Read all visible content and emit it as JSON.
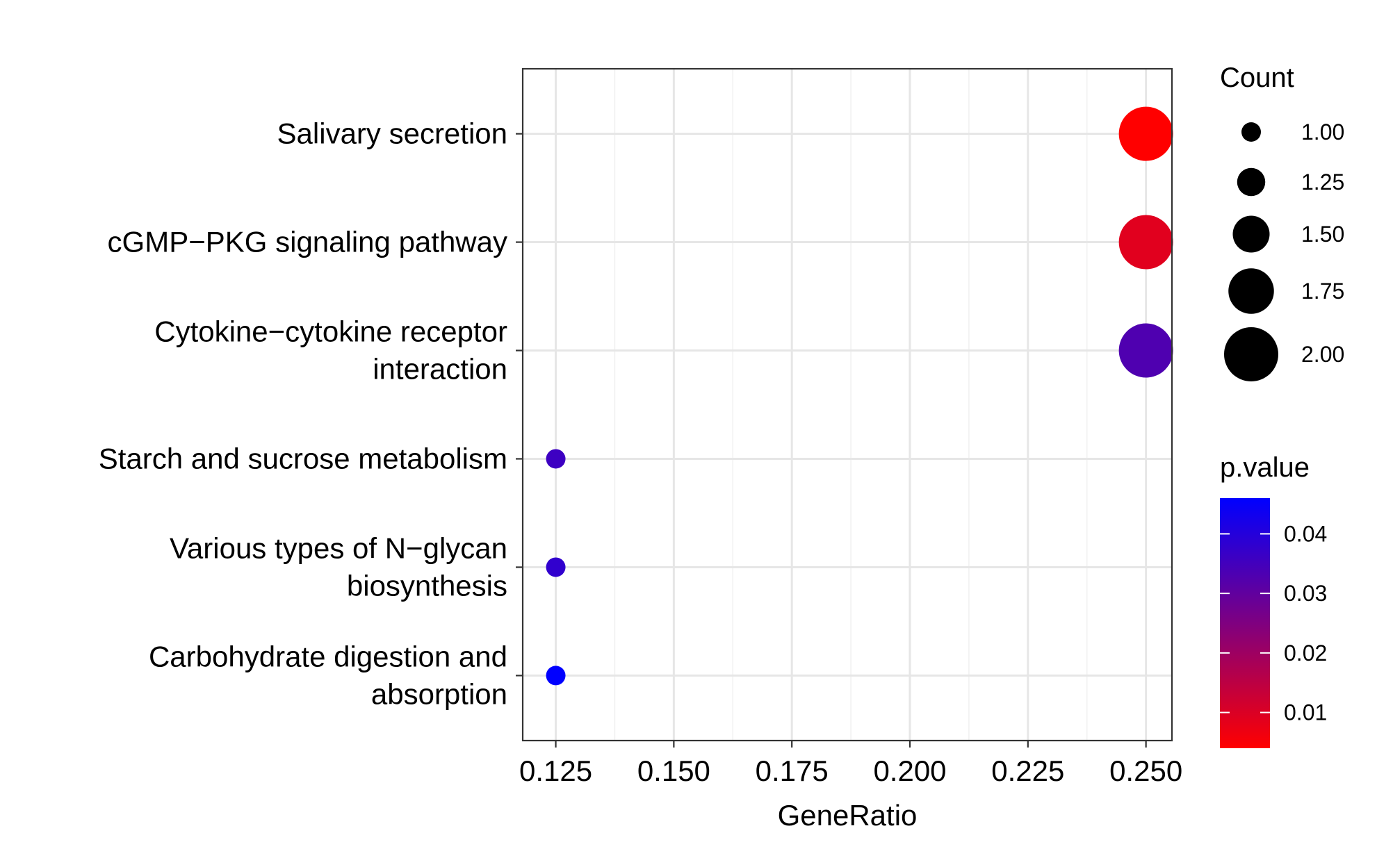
{
  "chart_data": {
    "type": "scatter",
    "xlabel": "GeneRatio",
    "xlim": [
      0.118,
      0.2555
    ],
    "xticks": [
      0.125,
      0.15,
      0.175,
      0.2,
      0.225,
      0.25
    ],
    "xtick_labels": [
      "0.125",
      "0.150",
      "0.175",
      "0.200",
      "0.225",
      "0.250"
    ],
    "categories": [
      "Salivary secretion",
      "cGMP−PKG signaling pathway",
      "Cytokine−cytokine receptor interaction",
      "Starch and sucrose metabolism",
      "Various types of N−glycan biosynthesis",
      "Carbohydrate digestion and absorption"
    ],
    "category_lines": [
      [
        "Salivary secretion"
      ],
      [
        "cGMP−PKG signaling pathway"
      ],
      [
        "Cytokine−cytokine receptor",
        "interaction"
      ],
      [
        "Starch and sucrose metabolism"
      ],
      [
        "Various types of N−glycan",
        "biosynthesis"
      ],
      [
        "Carbohydrate digestion and",
        "absorption"
      ]
    ],
    "points": [
      {
        "category": "Salivary secretion",
        "gene_ratio": 0.25,
        "count": 2,
        "p_value": 0.004
      },
      {
        "category": "cGMP−PKG signaling pathway",
        "gene_ratio": 0.25,
        "count": 2,
        "p_value": 0.009
      },
      {
        "category": "Cytokine−cytokine receptor interaction",
        "gene_ratio": 0.25,
        "count": 2,
        "p_value": 0.033
      },
      {
        "category": "Starch and sucrose metabolism",
        "gene_ratio": 0.125,
        "count": 1,
        "p_value": 0.036
      },
      {
        "category": "Various types of N−glycan biosynthesis",
        "gene_ratio": 0.125,
        "count": 1,
        "p_value": 0.038
      },
      {
        "category": "Carbohydrate digestion and absorption",
        "gene_ratio": 0.125,
        "count": 1,
        "p_value": 0.046
      }
    ],
    "size_legend": {
      "title": "Count",
      "values": [
        1.0,
        1.25,
        1.5,
        1.75,
        2.0
      ],
      "labels": [
        "1.00",
        "1.25",
        "1.50",
        "1.75",
        "2.00"
      ]
    },
    "color_legend": {
      "title": "p.value",
      "range": [
        0.004,
        0.046
      ],
      "ticks": [
        0.01,
        0.02,
        0.03,
        0.04
      ],
      "labels": [
        "0.01",
        "0.02",
        "0.03",
        "0.04"
      ],
      "low_color": "#FF0000",
      "high_color": "#0000FF"
    },
    "grid": true
  }
}
